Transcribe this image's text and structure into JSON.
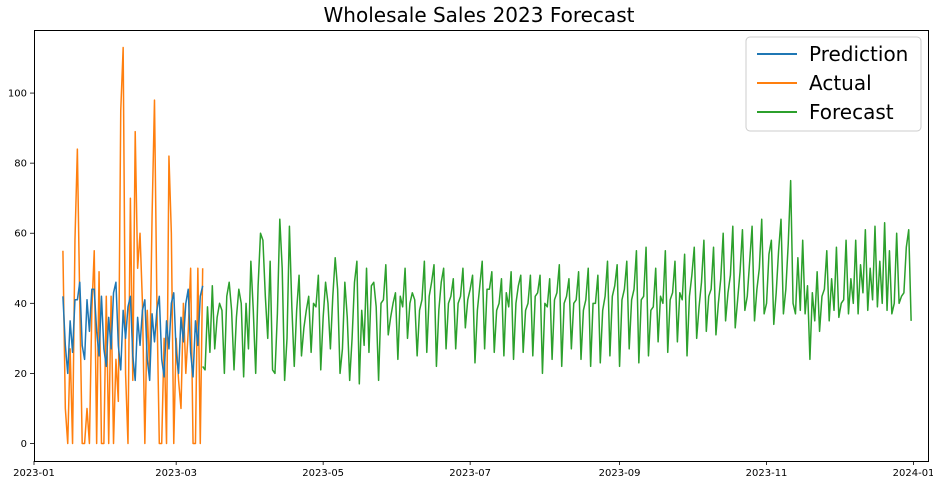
{
  "chart_data": {
    "type": "line",
    "title": "Wholesale Sales 2023 Forecast",
    "xlabel": "",
    "ylabel": "",
    "xlim": [
      "2023-01-01",
      "2024-01-07"
    ],
    "ylim": [
      -5,
      118
    ],
    "x_ticks": [
      "2023-01",
      "2023-03",
      "2023-05",
      "2023-07",
      "2023-09",
      "2023-11",
      "2024-01"
    ],
    "y_ticks": [
      0,
      20,
      40,
      60,
      80,
      100
    ],
    "grid": false,
    "legend_position": "top-right",
    "colors": {
      "Prediction": "#1f77b4",
      "Actual": "#ff7f0e",
      "Forecast": "#2ca02c"
    },
    "series": [
      {
        "name": "Prediction",
        "start": "2023-01-13",
        "end": "2023-03-12",
        "values": [
          42,
          28,
          20,
          35,
          26,
          41,
          41,
          46,
          28,
          24,
          41,
          32,
          44,
          44,
          32,
          25,
          42,
          27,
          22,
          36,
          27,
          43,
          46,
          28,
          21,
          38,
          30,
          39,
          42,
          25,
          18,
          36,
          28,
          38,
          41,
          24,
          18,
          37,
          29,
          38,
          42,
          24,
          19,
          35,
          27,
          40,
          43,
          26,
          20,
          36,
          29,
          40,
          44,
          26,
          19,
          35,
          28,
          42,
          45
        ]
      },
      {
        "name": "Actual",
        "start": "2023-01-13",
        "end": "2023-03-12",
        "values": [
          55,
          10,
          0,
          27,
          0,
          58,
          84,
          40,
          0,
          0,
          10,
          0,
          38,
          55,
          0,
          49,
          0,
          0,
          42,
          0,
          42,
          0,
          24,
          12,
          95,
          113,
          20,
          0,
          70,
          18,
          89,
          50,
          60,
          40,
          0,
          38,
          20,
          65,
          98,
          40,
          0,
          0,
          30,
          0,
          82,
          60,
          0,
          30,
          18,
          10,
          40,
          20,
          32,
          50,
          0,
          0,
          50,
          0,
          50
        ]
      },
      {
        "name": "Forecast",
        "start": "2023-03-12",
        "end": "2023-12-31",
        "values": [
          22,
          21,
          39,
          26,
          45,
          27,
          36,
          40,
          38,
          20,
          42,
          46,
          38,
          21,
          36,
          44,
          40,
          19,
          40,
          27,
          52,
          38,
          20,
          45,
          60,
          58,
          42,
          30,
          52,
          21,
          20,
          37,
          64,
          50,
          18,
          30,
          62,
          39,
          22,
          38,
          48,
          25,
          33,
          38,
          42,
          26,
          40,
          39,
          48,
          21,
          36,
          46,
          40,
          27,
          42,
          53,
          44,
          20,
          27,
          46,
          36,
          18,
          30,
          46,
          52,
          17,
          38,
          28,
          50,
          26,
          45,
          46,
          39,
          18,
          40,
          41,
          51,
          31,
          36,
          40,
          43,
          24,
          42,
          39,
          50,
          30,
          40,
          43,
          41,
          25,
          38,
          41,
          52,
          26,
          42,
          46,
          51,
          22,
          38,
          46,
          50,
          27,
          40,
          42,
          47,
          27,
          40,
          42,
          50,
          33,
          41,
          44,
          48,
          23,
          38,
          45,
          52,
          27,
          44,
          44,
          49,
          26,
          38,
          40,
          47,
          25,
          43,
          39,
          49,
          24,
          40,
          45,
          48,
          26,
          38,
          40,
          48,
          25,
          42,
          43,
          48,
          20,
          40,
          39,
          47,
          24,
          41,
          43,
          51,
          22,
          40,
          42,
          47,
          27,
          40,
          41,
          49,
          24,
          38,
          41,
          50,
          22,
          40,
          40,
          48,
          23,
          38,
          42,
          52,
          25,
          42,
          45,
          51,
          22,
          41,
          44,
          52,
          27,
          41,
          44,
          55,
          23,
          41,
          42,
          56,
          25,
          38,
          39,
          50,
          29,
          42,
          40,
          55,
          26,
          41,
          43,
          52,
          29,
          43,
          41,
          54,
          25,
          42,
          48,
          56,
          30,
          39,
          46,
          58,
          32,
          42,
          44,
          56,
          31,
          40,
          47,
          60,
          35,
          43,
          48,
          62,
          33,
          41,
          49,
          61,
          38,
          42,
          52,
          62,
          35,
          44,
          50,
          64,
          37,
          40,
          54,
          58,
          34,
          43,
          55,
          64,
          37,
          44,
          57,
          75,
          40,
          37,
          53,
          38,
          58,
          37,
          45,
          24,
          43,
          35,
          49,
          32,
          42,
          44,
          55,
          35,
          47,
          38,
          56,
          36,
          40,
          41,
          58,
          37,
          47,
          40,
          58,
          37,
          51,
          43,
          61,
          38,
          50,
          41,
          62,
          39,
          52,
          40,
          63,
          38,
          55,
          37,
          40,
          60,
          40,
          42,
          43,
          56,
          61,
          35
        ]
      }
    ]
  }
}
